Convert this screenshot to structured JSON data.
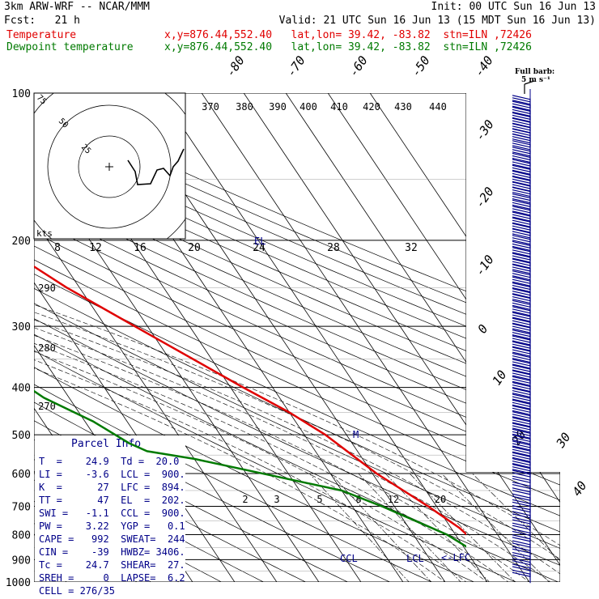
{
  "header": {
    "model": "3km ARW-WRF -- NCAR/MMM",
    "init": "Init: 00 UTC Sun 16 Jun 13",
    "fcst": "Fcst:   21 h",
    "valid": "Valid: 21 UTC Sun 16 Jun 13 (15 MDT Sun 16 Jun 13)",
    "temp_label": "Temperature",
    "temp_loc": "x,y=876.44,552.40   lat,lon= 39.42, -83.82  stn=ILN ,72426",
    "dew_label": "Dewpoint temperature",
    "dew_loc": "x,y=876.44,552.40   lat,lon= 39.42, -83.82  stn=ILN ,72426",
    "full_barb": "Full barb:",
    "full_barb_val": "5 m s⁻¹"
  },
  "colors": {
    "temperature": "#e00000",
    "dewpoint": "#007a00",
    "barbs": "#000088",
    "text_blue": "#000088"
  },
  "chart_data": {
    "type": "line",
    "subtype": "skew-T log-p",
    "y_axis": {
      "label": "pressure (hPa)",
      "ticks": [
        100,
        200,
        300,
        400,
        500,
        600,
        700,
        800,
        900,
        1000
      ],
      "scale": "log"
    },
    "isotherm_labels": [
      "-80",
      "-70",
      "-60",
      "-50",
      "-40",
      "-30",
      "-20",
      "-10",
      "0",
      "10",
      "20",
      "30",
      "40"
    ],
    "theta_labels_top": [
      "370",
      "380",
      "390",
      "400",
      "410",
      "420",
      "430",
      "440"
    ],
    "theta_labels_left": [
      "290",
      "280",
      "270"
    ],
    "mixing_ratio_labels_200": [
      "8",
      "12",
      "16",
      "20",
      "24",
      "28",
      "32"
    ],
    "mixing_ratio_labels_700": [
      "2",
      "3",
      "5",
      "8",
      "12",
      "20"
    ],
    "series": [
      {
        "name": "Temperature",
        "points": [
          [
            100,
            -54
          ],
          [
            120,
            -52
          ],
          [
            150,
            -54
          ],
          [
            175,
            -56
          ],
          [
            200,
            -53
          ],
          [
            250,
            -43
          ],
          [
            300,
            -33
          ],
          [
            400,
            -17
          ],
          [
            450,
            -10
          ],
          [
            500,
            -5
          ],
          [
            600,
            1
          ],
          [
            700,
            8
          ],
          [
            775,
            12
          ],
          [
            850,
            14
          ],
          [
            900,
            18
          ],
          [
            1000,
            24.9
          ]
        ]
      },
      {
        "name": "Dewpoint temperature",
        "points": [
          [
            100,
            -64
          ],
          [
            120,
            -71
          ],
          [
            150,
            -76
          ],
          [
            175,
            -82
          ],
          [
            195,
            -90
          ],
          [
            200,
            -89
          ],
          [
            230,
            -87
          ],
          [
            280,
            -80
          ],
          [
            300,
            -62
          ],
          [
            330,
            -65
          ],
          [
            360,
            -75
          ],
          [
            380,
            -70
          ],
          [
            420,
            -66
          ],
          [
            470,
            -58
          ],
          [
            520,
            -53
          ],
          [
            540,
            -50
          ],
          [
            560,
            -40
          ],
          [
            650,
            -10
          ],
          [
            700,
            -3
          ],
          [
            800,
            8
          ],
          [
            870,
            12
          ],
          [
            930,
            18
          ],
          [
            970,
            19.5
          ]
        ]
      }
    ],
    "annotations": [
      "M",
      "CCL",
      "LCL",
      "LFC",
      "EL"
    ]
  },
  "hodograph": {
    "units": "kts",
    "rings": [
      "25",
      "50",
      "75"
    ]
  },
  "parcel": {
    "title": "Parcel Info",
    "rows": [
      "T  =    24.9  Td =  20.0",
      "LI =    -3.6  LCL =  900.",
      "K  =      27  LFC =  894.",
      "TT =      47  EL  =  202.",
      "SWI =   -1.1  CCL =  900.",
      "PW =    3.22  YGP =   0.1",
      "CAPE =   992  SWEAT=  244",
      "CIN =    -39  HWBZ= 3406.",
      "Tc =    24.7  SHEAR=  27.",
      "SREH =     0  LAPSE=  6.2",
      "CELL = 276/35"
    ]
  }
}
